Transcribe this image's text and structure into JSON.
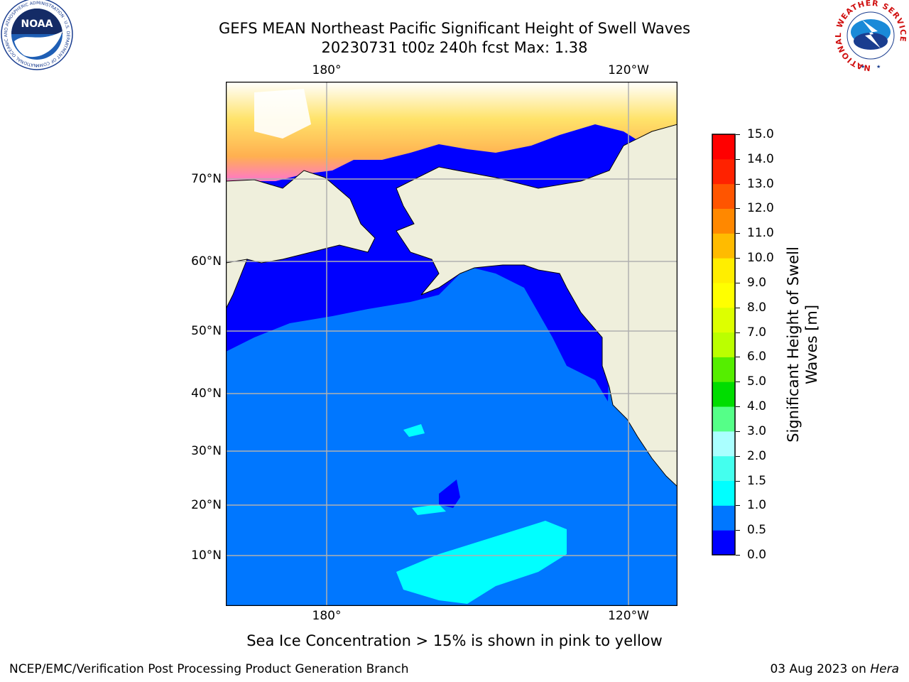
{
  "title_line1": "GEFS MEAN Northeast Pacific Significant Height of Swell Waves",
  "title_line2": "20230731 t00z 240h fcst   Max: 1.38",
  "lon_labels": [
    "180°",
    "120°W"
  ],
  "lat_labels": [
    "70°N",
    "60°N",
    "50°N",
    "40°N",
    "30°N",
    "20°N",
    "10°N"
  ],
  "colorbar": {
    "label": "Significant Height of Swell Waves [m]",
    "label_line1": "Significant Height of Swell",
    "label_line2": "Waves [m]",
    "ticks": [
      "0.0",
      "0.5",
      "1.0",
      "1.5",
      "2.0",
      "3.0",
      "4.0",
      "5.0",
      "6.0",
      "7.0",
      "8.0",
      "9.0",
      "10.0",
      "11.0",
      "12.0",
      "13.0",
      "14.0",
      "15.0"
    ],
    "colors": [
      "#0000ff",
      "#0077ff",
      "#00ffff",
      "#44ffee",
      "#aaffff",
      "#55ff88",
      "#00dd00",
      "#55ee00",
      "#bbff00",
      "#ddff00",
      "#ffff00",
      "#ffee00",
      "#ffbb00",
      "#ff8800",
      "#ff5500",
      "#ff2200",
      "#ff0000"
    ]
  },
  "map_colors": {
    "land": "#efefdc",
    "swell_0_0_5": "#0000ff",
    "swell_0_5_1_0": "#0077ff",
    "swell_1_0_1_5": "#00ffff",
    "ice_low": "#ff44ff",
    "ice_high": "#ffee44",
    "grid": "#b0b0b0"
  },
  "note": "Sea Ice Concentration > 15% is shown in pink to yellow",
  "footer_left": "NCEP/EMC/Verification Post Processing Product Generation Branch",
  "footer_date": "03 Aug 2023 on ",
  "footer_host": "Hera",
  "logos": {
    "noaa": {
      "text": "NOAA",
      "ring": "NATIONAL OCEANIC AND ATMOSPHERIC ADMINISTRATION · U.S. DEPARTMENT OF COMMERCE"
    },
    "nws": {
      "ring": "NATIONAL WEATHER SERVICE"
    }
  }
}
